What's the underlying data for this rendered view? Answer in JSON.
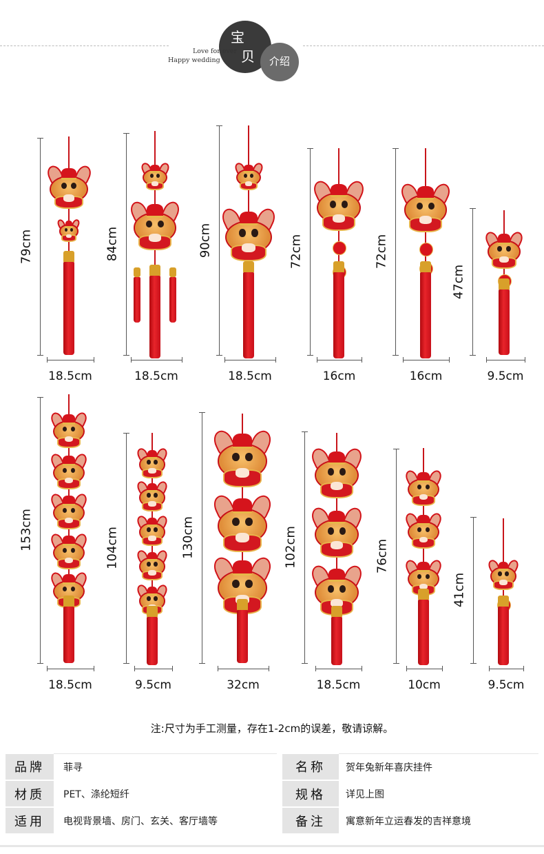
{
  "header": {
    "badge_title_1": "宝",
    "badge_title_2": "贝",
    "badge_sub": "介绍",
    "english_line1": "Love for ever",
    "english_line2": "Happy wedding"
  },
  "products_row1": [
    {
      "height": "79cm",
      "width": "18.5cm"
    },
    {
      "height": "84cm",
      "width": "18.5cm"
    },
    {
      "height": "90cm",
      "width": "18.5cm"
    },
    {
      "height": "72cm",
      "width": "16cm"
    },
    {
      "height": "72cm",
      "width": "16cm"
    },
    {
      "height": "47cm",
      "width": "9.5cm"
    }
  ],
  "products_row2": [
    {
      "height": "153cm",
      "width": "18.5cm"
    },
    {
      "height": "104cm",
      "width": "9.5cm"
    },
    {
      "height": "130cm",
      "width": "32cm"
    },
    {
      "height": "102cm",
      "width": "18.5cm"
    },
    {
      "height": "76cm",
      "width": "10cm"
    },
    {
      "height": "41cm",
      "width": "9.5cm"
    }
  ],
  "note": "注:尺寸为手工测量，存在1-2cm的误差，敬请谅解。",
  "spec": [
    {
      "k1": "品牌",
      "v1": "菲寻",
      "k2": "名称",
      "v2": "贺年兔新年喜庆挂件"
    },
    {
      "k1": "材质",
      "v1": "PET、涤纶短纤",
      "k2": "规格",
      "v2": "详见上图"
    },
    {
      "k1": "适用",
      "v1": "电视背景墙、房门、玄关、客厅墙等",
      "k2": "备注",
      "v2": "寓意新年立运春发的吉祥意境"
    }
  ],
  "colors": {
    "ornament_red": "#d31820",
    "gold": "#d8a02a",
    "badge_dark": "#3a3a3a",
    "badge_grey": "#6b6b6b"
  }
}
